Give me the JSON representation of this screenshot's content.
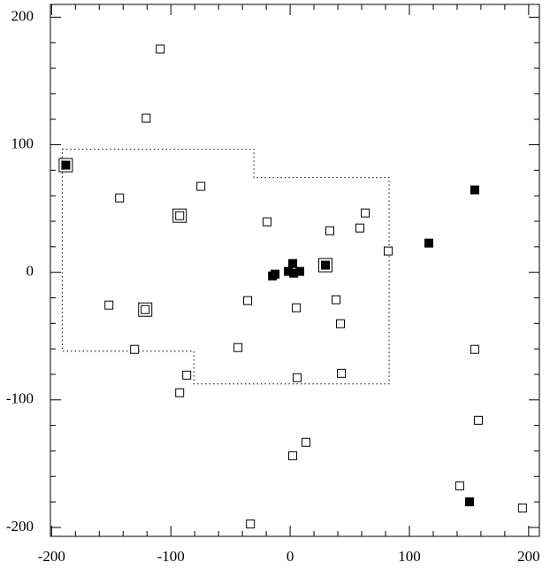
{
  "chart_data": {
    "type": "scatter",
    "xlim": [
      -201,
      209
    ],
    "ylim": [
      -207,
      210
    ],
    "xticks": [
      -200,
      -100,
      0,
      100,
      200
    ],
    "yticks": [
      -200,
      -100,
      0,
      100,
      200
    ],
    "xminorticks": [
      -180,
      -160,
      -140,
      -120,
      -80,
      -60,
      -40,
      -20,
      20,
      40,
      60,
      80,
      120,
      140,
      160,
      180
    ],
    "yminorticks": [
      -180,
      -160,
      -140,
      -120,
      -80,
      -60,
      -40,
      -20,
      20,
      40,
      60,
      80,
      120,
      140,
      160,
      180
    ],
    "region": {
      "x": [
        -191.1,
        -30.4,
        -30.4,
        83,
        83,
        -80.7,
        -80.7,
        -191.1,
        -191.1
      ],
      "y": [
        96.5,
        96.5,
        74.3,
        74.3,
        -87.5,
        -87.5,
        -61.8,
        -61.8,
        96.5
      ]
    },
    "series": [
      {
        "marker": "open",
        "boxed": false,
        "x": [
          -108.9,
          -120.7,
          -74.8,
          -143,
          -19.3,
          63,
          33.3,
          58.5,
          82.2,
          -151.9,
          -35.6,
          5.2,
          38.5,
          42.2,
          -130.4,
          -43.7,
          154.8,
          -86.7,
          5.9,
          43,
          -92.6,
          13.3,
          2.2,
          157.8,
          142.2,
          194.8,
          -33.3
        ],
        "y": [
          175,
          120.8,
          67.4,
          58.3,
          39.6,
          46.5,
          32.6,
          34.7,
          16.7,
          -25.7,
          -22.2,
          -27.8,
          -21.5,
          -40.3,
          -60.4,
          -59,
          -60.4,
          -80.6,
          -82.6,
          -79.2,
          -94.4,
          -133.3,
          -143.8,
          -116,
          -167.4,
          -184.7,
          -197.2
        ]
      },
      {
        "marker": "filled",
        "boxed": false,
        "x": [
          154.8,
          116.3,
          150.4,
          -14.8,
          -12.6,
          2.2,
          -1.5,
          8.1,
          3
        ],
        "y": [
          64.6,
          22.9,
          -179.9,
          -2.8,
          -1.4,
          6.9,
          0.7,
          0.7,
          -0.7
        ]
      },
      {
        "marker": "filled",
        "boxed": true,
        "x": [
          -188.1,
          29.6
        ],
        "y": [
          84,
          5.6
        ]
      },
      {
        "marker": "open",
        "boxed": true,
        "x": [
          -92.6,
          -121.5
        ],
        "y": [
          44.4,
          -29.2
        ]
      }
    ]
  }
}
